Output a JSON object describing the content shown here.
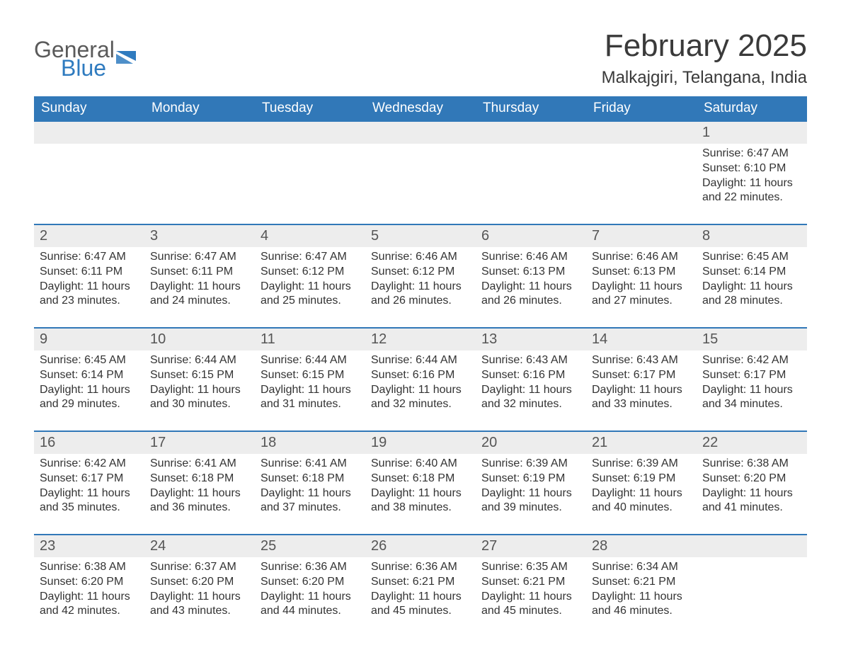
{
  "logo": {
    "word1": "General",
    "word2": "Blue",
    "accent_color": "#2f7bbf",
    "text_color": "#5a5a5a"
  },
  "title": "February 2025",
  "location": "Malkajgiri, Telangana, India",
  "colors": {
    "header_bg": "#3178b8",
    "header_text": "#ffffff",
    "daynum_bg": "#ededed",
    "border": "#3178b8",
    "body_text": "#333333"
  },
  "weekdays": [
    "Sunday",
    "Monday",
    "Tuesday",
    "Wednesday",
    "Thursday",
    "Friday",
    "Saturday"
  ],
  "weeks": [
    [
      null,
      null,
      null,
      null,
      null,
      null,
      {
        "n": "1",
        "sunrise": "6:47 AM",
        "sunset": "6:10 PM",
        "dl1": "Daylight: 11 hours",
        "dl2": "and 22 minutes."
      }
    ],
    [
      {
        "n": "2",
        "sunrise": "6:47 AM",
        "sunset": "6:11 PM",
        "dl1": "Daylight: 11 hours",
        "dl2": "and 23 minutes."
      },
      {
        "n": "3",
        "sunrise": "6:47 AM",
        "sunset": "6:11 PM",
        "dl1": "Daylight: 11 hours",
        "dl2": "and 24 minutes."
      },
      {
        "n": "4",
        "sunrise": "6:47 AM",
        "sunset": "6:12 PM",
        "dl1": "Daylight: 11 hours",
        "dl2": "and 25 minutes."
      },
      {
        "n": "5",
        "sunrise": "6:46 AM",
        "sunset": "6:12 PM",
        "dl1": "Daylight: 11 hours",
        "dl2": "and 26 minutes."
      },
      {
        "n": "6",
        "sunrise": "6:46 AM",
        "sunset": "6:13 PM",
        "dl1": "Daylight: 11 hours",
        "dl2": "and 26 minutes."
      },
      {
        "n": "7",
        "sunrise": "6:46 AM",
        "sunset": "6:13 PM",
        "dl1": "Daylight: 11 hours",
        "dl2": "and 27 minutes."
      },
      {
        "n": "8",
        "sunrise": "6:45 AM",
        "sunset": "6:14 PM",
        "dl1": "Daylight: 11 hours",
        "dl2": "and 28 minutes."
      }
    ],
    [
      {
        "n": "9",
        "sunrise": "6:45 AM",
        "sunset": "6:14 PM",
        "dl1": "Daylight: 11 hours",
        "dl2": "and 29 minutes."
      },
      {
        "n": "10",
        "sunrise": "6:44 AM",
        "sunset": "6:15 PM",
        "dl1": "Daylight: 11 hours",
        "dl2": "and 30 minutes."
      },
      {
        "n": "11",
        "sunrise": "6:44 AM",
        "sunset": "6:15 PM",
        "dl1": "Daylight: 11 hours",
        "dl2": "and 31 minutes."
      },
      {
        "n": "12",
        "sunrise": "6:44 AM",
        "sunset": "6:16 PM",
        "dl1": "Daylight: 11 hours",
        "dl2": "and 32 minutes."
      },
      {
        "n": "13",
        "sunrise": "6:43 AM",
        "sunset": "6:16 PM",
        "dl1": "Daylight: 11 hours",
        "dl2": "and 32 minutes."
      },
      {
        "n": "14",
        "sunrise": "6:43 AM",
        "sunset": "6:17 PM",
        "dl1": "Daylight: 11 hours",
        "dl2": "and 33 minutes."
      },
      {
        "n": "15",
        "sunrise": "6:42 AM",
        "sunset": "6:17 PM",
        "dl1": "Daylight: 11 hours",
        "dl2": "and 34 minutes."
      }
    ],
    [
      {
        "n": "16",
        "sunrise": "6:42 AM",
        "sunset": "6:17 PM",
        "dl1": "Daylight: 11 hours",
        "dl2": "and 35 minutes."
      },
      {
        "n": "17",
        "sunrise": "6:41 AM",
        "sunset": "6:18 PM",
        "dl1": "Daylight: 11 hours",
        "dl2": "and 36 minutes."
      },
      {
        "n": "18",
        "sunrise": "6:41 AM",
        "sunset": "6:18 PM",
        "dl1": "Daylight: 11 hours",
        "dl2": "and 37 minutes."
      },
      {
        "n": "19",
        "sunrise": "6:40 AM",
        "sunset": "6:18 PM",
        "dl1": "Daylight: 11 hours",
        "dl2": "and 38 minutes."
      },
      {
        "n": "20",
        "sunrise": "6:39 AM",
        "sunset": "6:19 PM",
        "dl1": "Daylight: 11 hours",
        "dl2": "and 39 minutes."
      },
      {
        "n": "21",
        "sunrise": "6:39 AM",
        "sunset": "6:19 PM",
        "dl1": "Daylight: 11 hours",
        "dl2": "and 40 minutes."
      },
      {
        "n": "22",
        "sunrise": "6:38 AM",
        "sunset": "6:20 PM",
        "dl1": "Daylight: 11 hours",
        "dl2": "and 41 minutes."
      }
    ],
    [
      {
        "n": "23",
        "sunrise": "6:38 AM",
        "sunset": "6:20 PM",
        "dl1": "Daylight: 11 hours",
        "dl2": "and 42 minutes."
      },
      {
        "n": "24",
        "sunrise": "6:37 AM",
        "sunset": "6:20 PM",
        "dl1": "Daylight: 11 hours",
        "dl2": "and 43 minutes."
      },
      {
        "n": "25",
        "sunrise": "6:36 AM",
        "sunset": "6:20 PM",
        "dl1": "Daylight: 11 hours",
        "dl2": "and 44 minutes."
      },
      {
        "n": "26",
        "sunrise": "6:36 AM",
        "sunset": "6:21 PM",
        "dl1": "Daylight: 11 hours",
        "dl2": "and 45 minutes."
      },
      {
        "n": "27",
        "sunrise": "6:35 AM",
        "sunset": "6:21 PM",
        "dl1": "Daylight: 11 hours",
        "dl2": "and 45 minutes."
      },
      {
        "n": "28",
        "sunrise": "6:34 AM",
        "sunset": "6:21 PM",
        "dl1": "Daylight: 11 hours",
        "dl2": "and 46 minutes."
      },
      null
    ]
  ],
  "labels": {
    "sunrise": "Sunrise: ",
    "sunset": "Sunset: "
  }
}
